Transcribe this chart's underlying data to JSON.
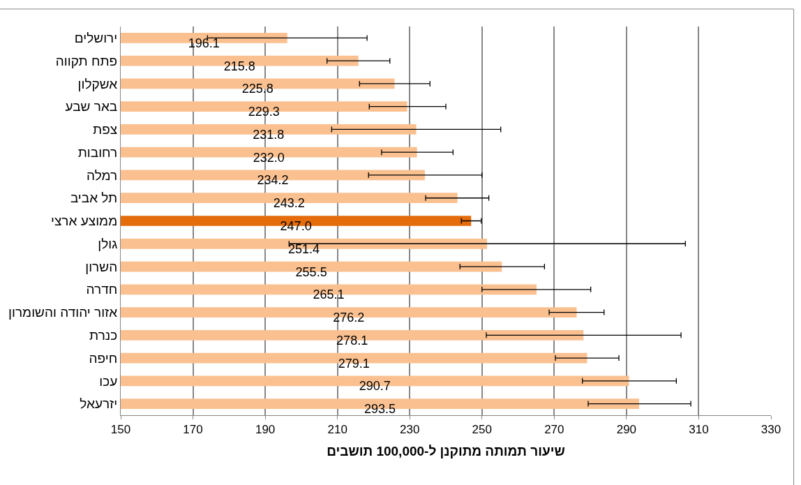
{
  "chart_data": {
    "type": "bar",
    "orientation": "horizontal",
    "xlabel": "שיעור תמותה מתוקנן ל-100,000 תושבים",
    "categories": [
      "ירושלים",
      "פתח תקווה",
      "אשקלון",
      "באר שבע",
      "צפת",
      "רחובות",
      "רמלה",
      "תל אביב",
      "ממוצע ארצי",
      "גולן",
      "השרון",
      "חדרה",
      "אזור יהודה והשומרון",
      "כנרת",
      "חיפה",
      "עכו",
      "יזרעאל"
    ],
    "values": [
      196.1,
      215.8,
      225.8,
      229.3,
      231.8,
      232.0,
      234.2,
      243.2,
      247.0,
      251.4,
      255.5,
      265.1,
      276.2,
      278.1,
      279.1,
      290.7,
      293.5
    ],
    "colors": [
      "#fac090",
      "#fac090",
      "#fac090",
      "#fac090",
      "#fac090",
      "#fac090",
      "#fac090",
      "#fac090",
      "#e46c0a",
      "#fac090",
      "#fac090",
      "#fac090",
      "#fac090",
      "#fac090",
      "#fac090",
      "#fac090",
      "#fac090"
    ],
    "errors": [
      [
        174.0,
        218.2
      ],
      [
        207.1,
        224.5
      ],
      [
        216.1,
        235.6
      ],
      [
        218.8,
        240.0
      ],
      [
        208.4,
        255.2
      ],
      [
        222.2,
        242.0
      ],
      [
        218.6,
        250.0
      ],
      [
        234.4,
        251.9
      ],
      [
        244.3,
        249.8
      ],
      [
        196.6,
        306.3
      ],
      [
        243.9,
        267.3
      ],
      [
        250.0,
        280.1
      ],
      [
        268.6,
        283.8
      ],
      [
        251.2,
        305.1
      ],
      [
        270.3,
        287.9
      ],
      [
        277.8,
        303.8
      ],
      [
        279.4,
        307.8
      ]
    ],
    "value_labels": [
      "196.1",
      "215.8",
      "225.8",
      "229.3",
      "231.8",
      "232.0",
      "234.2",
      "243.2",
      "247.0",
      "251.4",
      "255.5",
      "265.1",
      "276.2",
      "278.1",
      "279.1",
      "290.7",
      "293.5"
    ],
    "xlim": [
      150,
      330
    ],
    "xticks": [
      150,
      170,
      190,
      210,
      230,
      250,
      270,
      290,
      310,
      330
    ],
    "grid": "x"
  }
}
